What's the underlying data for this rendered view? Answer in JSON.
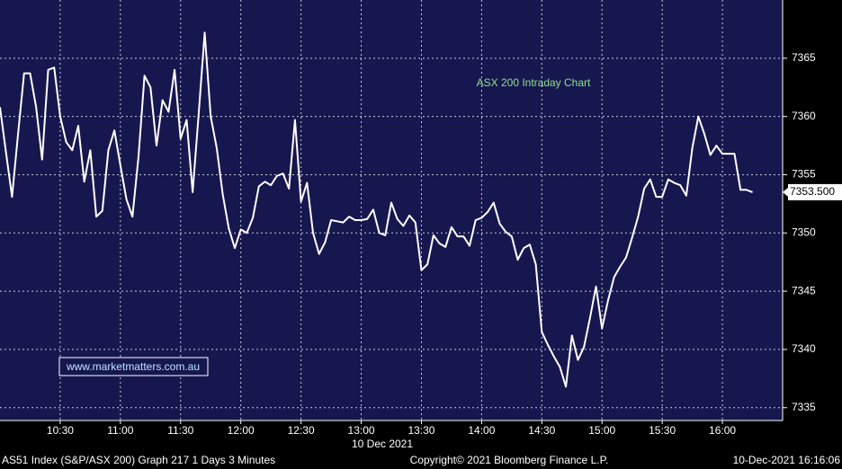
{
  "chart_data": {
    "type": "line",
    "title": "ASX 200 Intraday Chart",
    "watermark": "www.marketmatters.com.au",
    "x_label": "10 Dec 2021",
    "footer_left": "AS51 Index (S&P/ASX 200) Graph 217 1 Days 3 Minutes",
    "footer_center": "Copyright© 2021 Bloomberg Finance L.P.",
    "footer_right": "10-Dec-2021 16:16:06",
    "x": [
      "10:00",
      "10:03",
      "10:06",
      "10:09",
      "10:12",
      "10:15",
      "10:18",
      "10:21",
      "10:24",
      "10:27",
      "10:30",
      "10:33",
      "10:36",
      "10:39",
      "10:42",
      "10:45",
      "10:48",
      "10:51",
      "10:54",
      "10:57",
      "11:00",
      "11:03",
      "11:06",
      "11:09",
      "11:12",
      "11:15",
      "11:18",
      "11:21",
      "11:24",
      "11:27",
      "11:30",
      "11:33",
      "11:36",
      "11:39",
      "11:42",
      "11:45",
      "11:48",
      "11:51",
      "11:54",
      "11:57",
      "12:00",
      "12:03",
      "12:06",
      "12:09",
      "12:12",
      "12:15",
      "12:18",
      "12:21",
      "12:24",
      "12:27",
      "12:30",
      "12:33",
      "12:36",
      "12:39",
      "12:42",
      "12:45",
      "12:48",
      "12:51",
      "12:54",
      "12:57",
      "13:00",
      "13:03",
      "13:06",
      "13:09",
      "13:12",
      "13:15",
      "13:18",
      "13:21",
      "13:24",
      "13:27",
      "13:30",
      "13:33",
      "13:36",
      "13:39",
      "13:42",
      "13:45",
      "13:48",
      "13:51",
      "13:54",
      "13:57",
      "14:00",
      "14:03",
      "14:06",
      "14:09",
      "14:12",
      "14:15",
      "14:18",
      "14:21",
      "14:24",
      "14:27",
      "14:30",
      "14:33",
      "14:36",
      "14:39",
      "14:42",
      "14:45",
      "14:48",
      "14:51",
      "14:54",
      "14:57",
      "15:00",
      "15:03",
      "15:06",
      "15:09",
      "15:12",
      "15:15",
      "15:18",
      "15:21",
      "15:24",
      "15:27",
      "15:30",
      "15:33",
      "15:36",
      "15:39",
      "15:42",
      "15:45",
      "15:48",
      "15:51",
      "15:54",
      "15:57",
      "16:00",
      "16:03",
      "16:06",
      "16:09",
      "16:12",
      "16:15"
    ],
    "series": [
      {
        "name": "AS51 Index",
        "color": "#ffffff",
        "values": [
          7360.8,
          7356.9,
          7353.1,
          7358.5,
          7363.7,
          7363.7,
          7360.8,
          7356.3,
          7364.0,
          7364.2,
          7360.0,
          7357.8,
          7357.1,
          7359.2,
          7354.4,
          7357.1,
          7351.4,
          7351.9,
          7357.1,
          7358.8,
          7355.8,
          7352.9,
          7351.4,
          7356.5,
          7363.5,
          7362.5,
          7357.5,
          7361.4,
          7360.4,
          7364.0,
          7358.1,
          7359.7,
          7353.5,
          7360.2,
          7367.2,
          7360.0,
          7357.3,
          7353.3,
          7350.4,
          7348.7,
          7350.3,
          7350.0,
          7351.3,
          7354.0,
          7354.4,
          7354.1,
          7354.9,
          7355.1,
          7353.8,
          7359.7,
          7352.7,
          7354.3,
          7350.0,
          7348.2,
          7349.2,
          7351.1,
          7351.0,
          7350.9,
          7351.4,
          7351.1,
          7351.1,
          7351.2,
          7352.0,
          7350.0,
          7349.8,
          7352.6,
          7351.2,
          7350.6,
          7351.5,
          7350.9,
          7346.8,
          7347.3,
          7349.8,
          7349.1,
          7348.8,
          7350.5,
          7349.7,
          7349.7,
          7348.9,
          7351.1,
          7351.3,
          7351.8,
          7352.6,
          7350.8,
          7350.1,
          7349.7,
          7347.7,
          7348.7,
          7349.0,
          7347.3,
          7341.5,
          7340.4,
          7339.4,
          7338.5,
          7336.8,
          7341.2,
          7339.1,
          7340.2,
          7342.7,
          7345.4,
          7341.8,
          7344.2,
          7346.2,
          7347.1,
          7347.9,
          7349.6,
          7351.4,
          7353.8,
          7354.6,
          7353.1,
          7353.1,
          7354.6,
          7354.3,
          7354.1,
          7353.2,
          7357.3,
          7360.0,
          7358.5,
          7356.7,
          7357.5,
          7356.8,
          7356.8,
          7356.8,
          7353.7,
          7353.7,
          7353.5
        ]
      }
    ],
    "last_price": {
      "value": 7353.5,
      "label": "7353.500"
    },
    "xlim": [
      "10:00",
      "16:30"
    ],
    "xticks": [
      "10:30",
      "11:00",
      "11:30",
      "12:00",
      "12:30",
      "13:00",
      "13:30",
      "14:00",
      "14:30",
      "15:00",
      "15:30",
      "16:00"
    ],
    "ylim": [
      7333.9,
      7370
    ],
    "yticks": [
      7335,
      7340,
      7345,
      7350,
      7355,
      7360,
      7365
    ],
    "grid": true
  }
}
